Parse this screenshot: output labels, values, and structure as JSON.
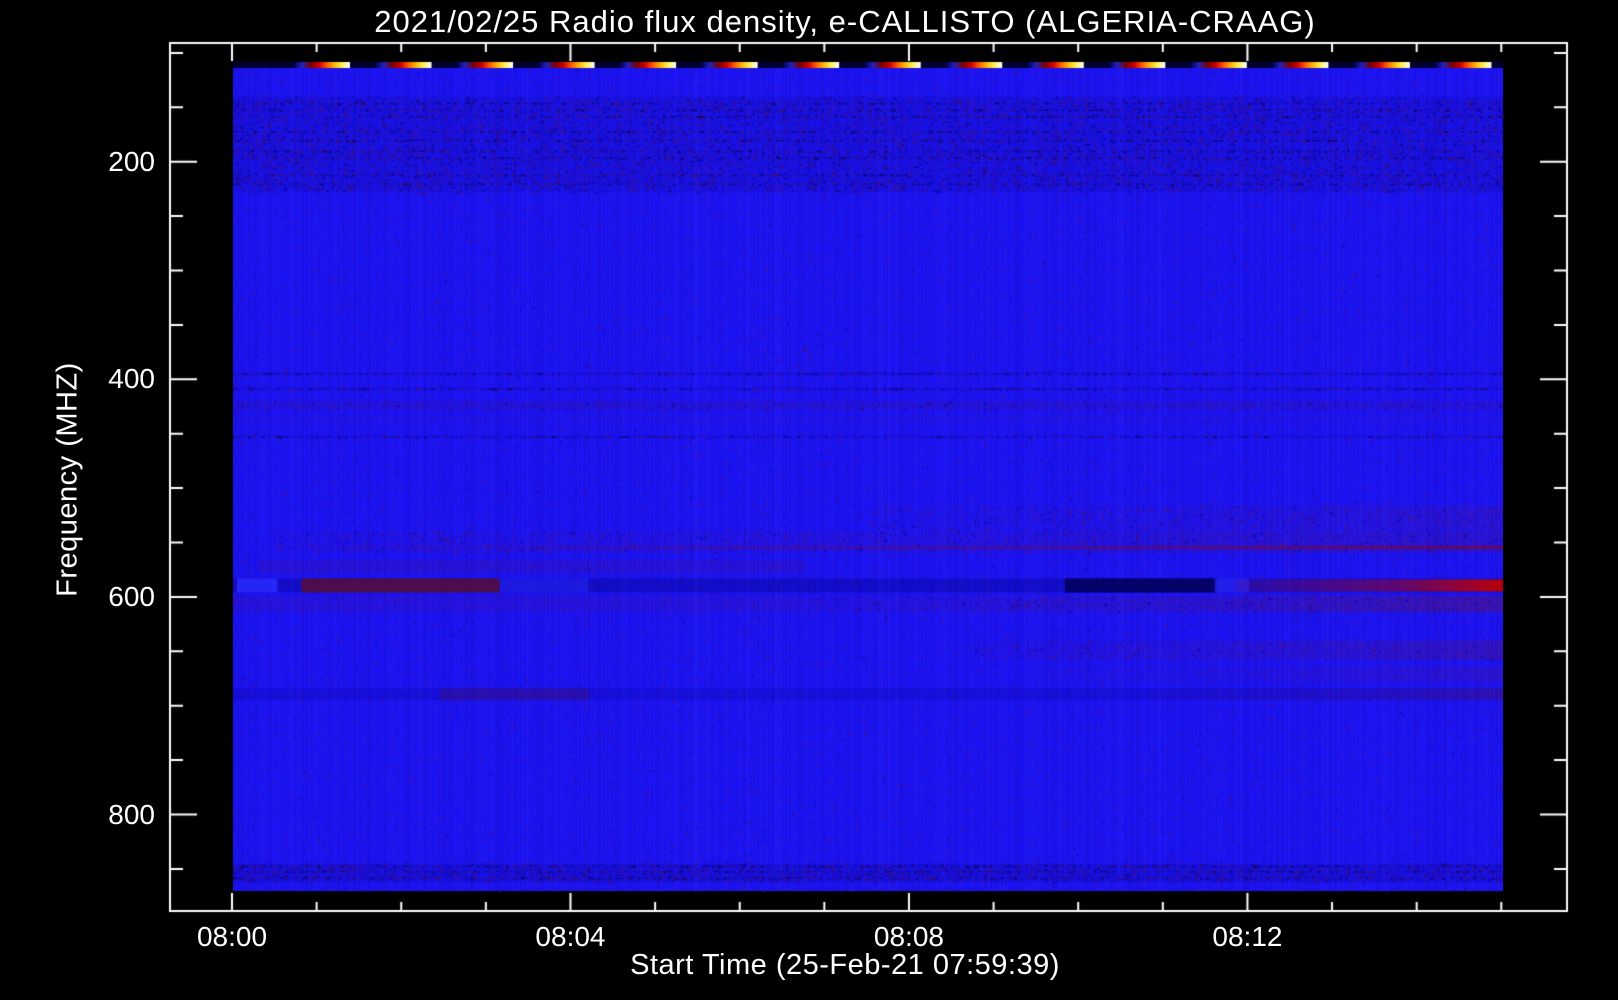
{
  "title": "2021/02/25  Radio flux density, e-CALLISTO (ALGERIA-CRAAG)",
  "chart_data": {
    "type": "heatmap",
    "title": "2021/02/25  Radio flux density, e-CALLISTO (ALGERIA-CRAAG)",
    "xlabel": "Start Time (25-Feb-21 07:59:39)",
    "ylabel": "Frequency (MHZ)",
    "instrument": "e-CALLISTO (ALGERIA-CRAAG)",
    "date": "2021/02/25",
    "start_time": "07:59:39",
    "x_axis": {
      "major_ticks": [
        {
          "minute": 0,
          "label": "08:00"
        },
        {
          "minute": 4,
          "label": "08:04"
        },
        {
          "minute": 8,
          "label": "08:08"
        },
        {
          "minute": 12,
          "label": "08:12"
        }
      ],
      "minor_tick_minutes": [
        1,
        2,
        3,
        5,
        6,
        7,
        9,
        10,
        11,
        13,
        14,
        15
      ],
      "duration_minutes": 15.0
    },
    "y_axis": {
      "major_ticks": [
        {
          "freq": 200,
          "label": "200"
        },
        {
          "freq": 400,
          "label": "400"
        },
        {
          "freq": 600,
          "label": "600"
        },
        {
          "freq": 800,
          "label": "800"
        }
      ],
      "minor_tick_freqs": [
        100,
        150,
        250,
        300,
        350,
        450,
        500,
        550,
        650,
        700,
        750,
        850
      ],
      "range_mhz": [
        109,
        870
      ],
      "increases_downward": true
    },
    "colors": {
      "background": "#000000",
      "frame": "#ffffff",
      "base_blue": "#1c13f2",
      "speckle_maroon": "#6c1340",
      "speckle_navy": "#000090",
      "speckle_purple": "#5a20c8",
      "burst_red": "#c00000",
      "cal_row_dark": "#000030"
    },
    "calibration_dashes": {
      "count": 15,
      "x0_frac": 0.048,
      "period_frac": 0.0642,
      "width_frac": 0.0441,
      "gradient": [
        "#000050",
        "#2222bb",
        "#7a0000",
        "#cc0000",
        "#ff5500",
        "#ffaa00",
        "#ffee44",
        "#ffffff"
      ],
      "gradient_stops": [
        0,
        0.14,
        0.3,
        0.45,
        0.58,
        0.7,
        0.84,
        1
      ]
    },
    "noise": {
      "seed": 1234567,
      "global_speckle_count": 26000,
      "column_striation_alpha": 0.14
    },
    "bands": [
      {
        "f0": 140,
        "f1": 228,
        "x0": 0,
        "x1": 1,
        "color": "#000080",
        "alpha": 0.1,
        "speckle": 0.5,
        "speckle_colors": [
          "#000070",
          "#5c1040"
        ],
        "rows": [
          146,
          152,
          158,
          172,
          180,
          190,
          196,
          212,
          220
        ]
      },
      {
        "f0": 393,
        "f1": 396,
        "x0": 0,
        "x1": 1,
        "color": "#000080",
        "alpha": 0.12,
        "rows": [
          394.5
        ]
      },
      {
        "f0": 407,
        "f1": 410,
        "x0": 0,
        "x1": 1,
        "color": "#000080",
        "alpha": 0.1,
        "rows": [
          408.5
        ]
      },
      {
        "f0": 420,
        "f1": 428,
        "x0": 0,
        "x1": 1,
        "color": "#5c1040",
        "alpha": 0.1,
        "speckle": 0.3
      },
      {
        "f0": 435,
        "f1": 439,
        "x0": 0,
        "x1": 1,
        "color": "#4a1a90",
        "alpha": 0.1
      },
      {
        "f0": 451,
        "f1": 454,
        "x0": 0,
        "x1": 1,
        "color": "#000080",
        "alpha": 0.08,
        "rows": [
          452.5
        ]
      },
      {
        "f0": 516,
        "f1": 538,
        "x0": 0.5,
        "x1": 1,
        "color": "#6c1340",
        "alpha": 0.14,
        "ramp": "right",
        "speckle": 0.25
      },
      {
        "f0": 539,
        "f1": 559,
        "x0": 0.03,
        "x1": 1,
        "color": "#6c1340",
        "alpha": 0.16,
        "ramp": "right",
        "speckle": 0.3
      },
      {
        "f0": 553,
        "f1": 556,
        "x0": 0.05,
        "x1": 1,
        "color": "#8c0018",
        "alpha": 0.6,
        "ramp": "right"
      },
      {
        "f0": 566,
        "f1": 578,
        "x0": 0.02,
        "x1": 0.45,
        "color": "#6c1340",
        "alpha": 0.13
      },
      {
        "f0": 583,
        "f1": 596,
        "x0": 0,
        "x1": 1,
        "color": "#000070",
        "alpha": 0.3
      },
      {
        "f0": 583,
        "f1": 596,
        "x0": 0.003,
        "x1": 0.035,
        "color": "#2a2aff",
        "alpha": 0.85
      },
      {
        "f0": 583,
        "f1": 596,
        "x0": 0.054,
        "x1": 0.21,
        "color": "#5c0e2e",
        "alpha": 0.8
      },
      {
        "f0": 583,
        "f1": 596,
        "x0": 0.21,
        "x1": 0.28,
        "color": "#2a2aff",
        "alpha": 0.45
      },
      {
        "f0": 583,
        "f1": 596,
        "x0": 0.655,
        "x1": 0.775,
        "color": "#000050",
        "alpha": 0.8
      },
      {
        "f0": 583,
        "f1": 596,
        "x0": 0.773,
        "x1": 0.8,
        "color": "#2a2aff",
        "alpha": 0.65
      },
      {
        "f0": 584,
        "f1": 595,
        "x0": 0.79,
        "x1": 1,
        "color": "#c00000",
        "alpha": 0.95,
        "ramp": "right"
      },
      {
        "f0": 599,
        "f1": 614,
        "x0": 0,
        "x1": 0.45,
        "color": "#6c1340",
        "alpha": 0.1
      },
      {
        "f0": 599,
        "f1": 614,
        "x0": 0.45,
        "x1": 1,
        "color": "#6c1340",
        "alpha": 0.35,
        "ramp": "right",
        "speckle": 0.3
      },
      {
        "f0": 640,
        "f1": 658,
        "x0": 0.58,
        "x1": 1,
        "color": "#6c1340",
        "alpha": 0.25,
        "ramp": "right",
        "speckle": 0.25
      },
      {
        "f0": 664,
        "f1": 678,
        "x0": 0.63,
        "x1": 1,
        "color": "#6c1340",
        "alpha": 0.17,
        "ramp": "right"
      },
      {
        "f0": 684,
        "f1": 695,
        "x0": 0,
        "x1": 1,
        "color": "#000080",
        "alpha": 0.18
      },
      {
        "f0": 684,
        "f1": 695,
        "x0": 0.163,
        "x1": 0.281,
        "color": "#4a1060",
        "alpha": 0.35
      },
      {
        "f0": 684,
        "f1": 695,
        "x0": 0.72,
        "x1": 1,
        "color": "#6c1340",
        "alpha": 0.25,
        "ramp": "right"
      },
      {
        "f0": 845,
        "f1": 862,
        "x0": 0,
        "x1": 1,
        "color": "#000080",
        "alpha": 0.14,
        "speckle": 0.55,
        "speckle_colors": [
          "#000080",
          "#5c1040"
        ],
        "rows": [
          847,
          852,
          858
        ]
      }
    ]
  }
}
